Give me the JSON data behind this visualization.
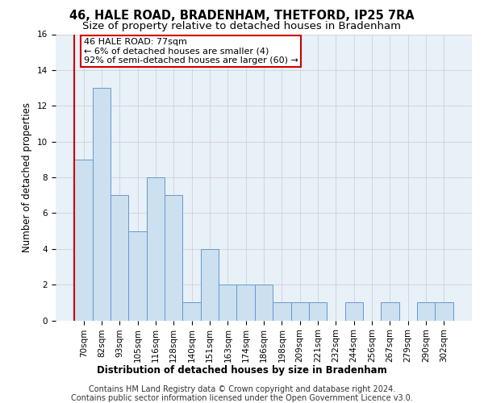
{
  "title": "46, HALE ROAD, BRADENHAM, THETFORD, IP25 7RA",
  "subtitle": "Size of property relative to detached houses in Bradenham",
  "xlabel": "Distribution of detached houses by size in Bradenham",
  "ylabel": "Number of detached properties",
  "categories": [
    "70sqm",
    "82sqm",
    "93sqm",
    "105sqm",
    "116sqm",
    "128sqm",
    "140sqm",
    "151sqm",
    "163sqm",
    "174sqm",
    "186sqm",
    "198sqm",
    "209sqm",
    "221sqm",
    "232sqm",
    "244sqm",
    "256sqm",
    "267sqm",
    "279sqm",
    "290sqm",
    "302sqm"
  ],
  "values": [
    9,
    13,
    7,
    5,
    8,
    7,
    1,
    4,
    2,
    2,
    2,
    1,
    1,
    1,
    0,
    1,
    0,
    1,
    0,
    1,
    1
  ],
  "bar_color": "#cce0f0",
  "bar_edge_color": "#6699cc",
  "annotation_line1": "46 HALE ROAD: 77sqm",
  "annotation_line2": "← 6% of detached houses are smaller (4)",
  "annotation_line3": "92% of semi-detached houses are larger (60) →",
  "annotation_box_color": "#ffffff",
  "annotation_box_edge_color": "#cc0000",
  "vline_color": "#cc0000",
  "ylim": [
    0,
    16
  ],
  "yticks": [
    0,
    2,
    4,
    6,
    8,
    10,
    12,
    14,
    16
  ],
  "grid_color": "#cccccc",
  "bg_color": "#e8f0f8",
  "footer_line1": "Contains HM Land Registry data © Crown copyright and database right 2024.",
  "footer_line2": "Contains public sector information licensed under the Open Government Licence v3.0.",
  "title_fontsize": 10.5,
  "subtitle_fontsize": 9.5,
  "ylabel_fontsize": 8.5,
  "xlabel_fontsize": 8.5,
  "tick_fontsize": 7.5,
  "annot_fontsize": 8,
  "footer_fontsize": 7
}
